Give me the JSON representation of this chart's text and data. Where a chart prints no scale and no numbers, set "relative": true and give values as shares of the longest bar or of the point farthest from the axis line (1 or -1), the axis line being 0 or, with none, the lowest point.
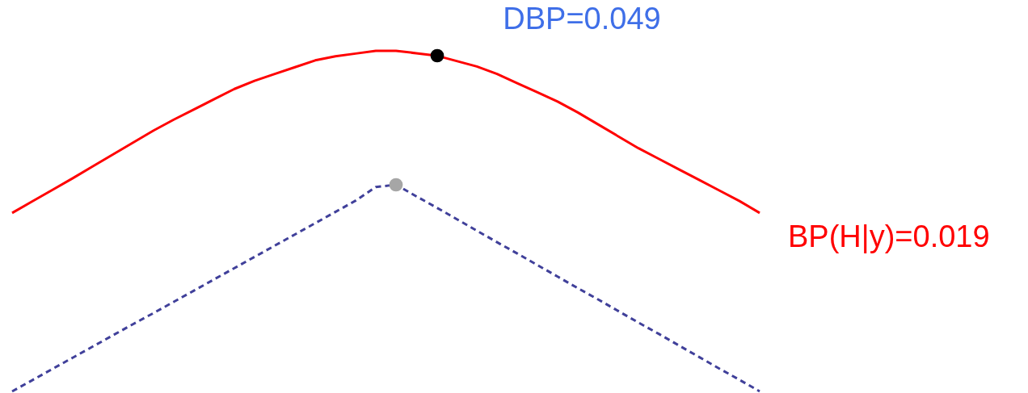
{
  "chart_data": {
    "type": "line",
    "relative": true,
    "tick_labels": false,
    "grid": false,
    "categories": [
      null,
      null,
      null,
      null,
      null,
      null,
      null,
      null,
      null,
      null,
      null,
      null,
      null,
      null,
      null,
      null,
      null,
      null,
      null,
      null,
      null,
      null,
      null,
      null,
      null,
      null,
      null,
      null,
      null,
      null,
      null,
      null,
      null,
      null,
      null,
      null,
      null,
      null
    ],
    "series": [
      {
        "color": "#ff0000",
        "line_style": "solid",
        "values": [
          0.524,
          0.558,
          0.592,
          0.626,
          0.661,
          0.696,
          0.731,
          0.766,
          0.798,
          0.828,
          0.858,
          0.888,
          0.912,
          0.932,
          0.952,
          0.972,
          0.984,
          0.992,
          1,
          1,
          0.993,
          0.986,
          0.97,
          0.954,
          0.932,
          0.905,
          0.878,
          0.851,
          0.819,
          0.784,
          0.749,
          0.714,
          0.683,
          0.652,
          0.621,
          0.59,
          0.559,
          0.524
        ]
      },
      {
        "color": "#40409a",
        "line_style": "dashed",
        "values": [
          0,
          0.033,
          0.066,
          0.099,
          0.132,
          0.165,
          0.198,
          0.23,
          0.263,
          0.296,
          0.329,
          0.362,
          0.395,
          0.428,
          0.461,
          0.494,
          0.527,
          0.56,
          0.6,
          0.607,
          0.573,
          0.54,
          0.506,
          0.472,
          0.438,
          0.405,
          0.371,
          0.337,
          0.303,
          0.27,
          0.236,
          0.202,
          0.169,
          0.135,
          0.101,
          0.067,
          0.034,
          0
        ]
      }
    ],
    "annotations": [
      "DBP=0.049",
      "BP(H|y)=0.019"
    ]
  }
}
